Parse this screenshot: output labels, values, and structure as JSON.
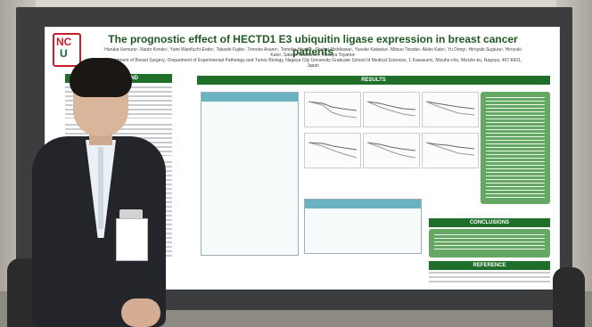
{
  "poster": {
    "logo_text": "NC",
    "logo_u": "U",
    "title": "The prognostic effect of HECTD1 E3 ubiquitin ligase expression in breast cancer patients",
    "authors": "Haruka Uemura¹, Naoto Kondo¹, Yumi Wanifuchi-Endo¹, Takashi Fujita¹, Tomoko Asano¹, Tomoka Hisada¹, Shuhei Nishikawa¹, Yusuke Kataoka¹, Mitsuo Terada¹, Akiko Kato¹, Yu Dong¹, Hiroyuki Sugiura¹, Hiroyuki Kato¹, Satoru Takahashi², Tatsuya Toyama¹",
    "affiliation": "¹Department of Breast Surgery, ²Department of Experimental Pathology and Tumor Biology, Nagoya City University Graduate School of Medical Sciences, 1 Kawasumi, Mizuho-cho, Mizuho-ku, Nagoya, 467-8601, Japan",
    "sections": {
      "background": "BACKGROUND",
      "results": "RESULTS",
      "conclusions": "CONCLUSIONS",
      "reference": "REFERENCE"
    }
  },
  "colors": {
    "banner_green": "#1f6f2a",
    "logo_red": "#c51f2a",
    "table_header": "#6bb3c2"
  }
}
